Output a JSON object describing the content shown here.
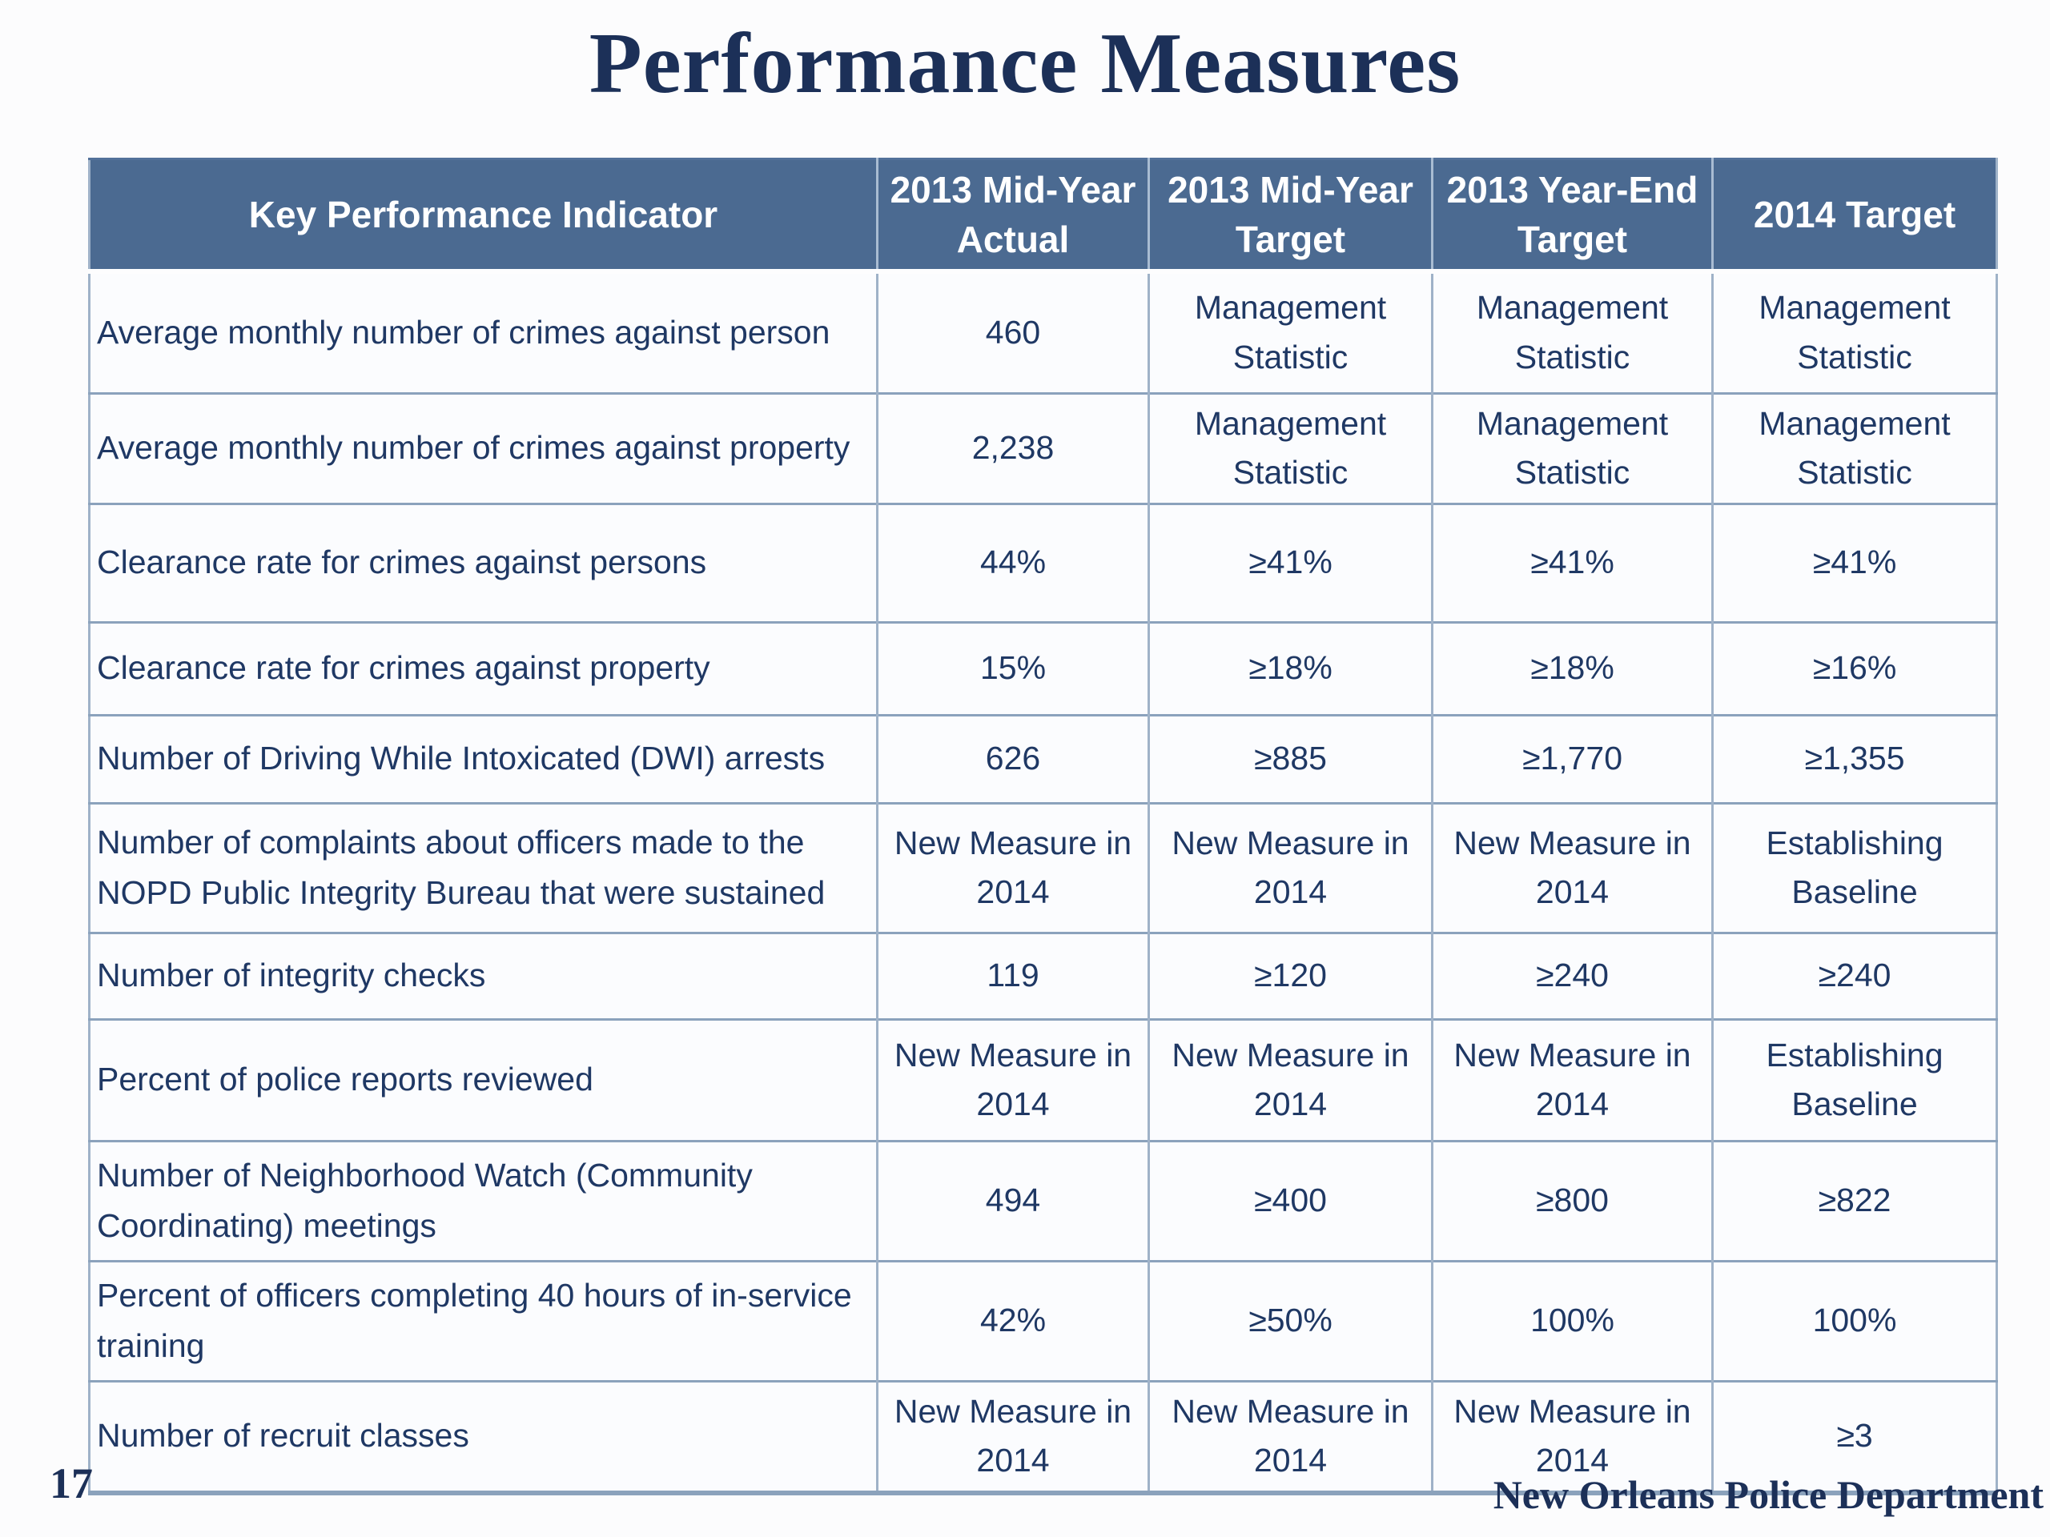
{
  "title": "Performance Measures",
  "page_number": "17",
  "footer": {
    "organization": "New Orleans Police Department"
  },
  "colors": {
    "header_bg": "#4b6a91",
    "header_text": "#ffffff",
    "body_text": "#1f3864",
    "title_text": "#1c3058",
    "grid_line": "#8ba2bc"
  },
  "table": {
    "headers": [
      "Key Performance Indicator",
      "2013 Mid-Year Actual",
      "2013 Mid-Year Target",
      "2013 Year-End Target",
      "2014 Target"
    ],
    "rows": [
      {
        "kpi": "Average monthly number of crimes against person",
        "actual": "460",
        "mid_year_target": "Management Statistic",
        "year_end_target": "Management Statistic",
        "target_2014": "Management Statistic"
      },
      {
        "kpi": "Average monthly number of crimes against property",
        "actual": "2,238",
        "mid_year_target": "Management Statistic",
        "year_end_target": "Management Statistic",
        "target_2014": "Management Statistic"
      },
      {
        "kpi": "Clearance rate for crimes against persons",
        "actual": "44%",
        "mid_year_target": "≥41%",
        "year_end_target": "≥41%",
        "target_2014": "≥41%"
      },
      {
        "kpi": "Clearance rate for crimes against property",
        "actual": "15%",
        "mid_year_target": "≥18%",
        "year_end_target": "≥18%",
        "target_2014": "≥16%"
      },
      {
        "kpi": "Number of Driving While Intoxicated (DWI) arrests",
        "actual": "626",
        "mid_year_target": "≥885",
        "year_end_target": "≥1,770",
        "target_2014": "≥1,355"
      },
      {
        "kpi": "Number of complaints about officers made to the NOPD Public Integrity Bureau that were sustained",
        "actual": "New Measure in 2014",
        "mid_year_target": "New Measure in 2014",
        "year_end_target": "New Measure in 2014",
        "target_2014": "Establishing Baseline"
      },
      {
        "kpi": "Number of integrity checks",
        "actual": "119",
        "mid_year_target": "≥120",
        "year_end_target": "≥240",
        "target_2014": "≥240"
      },
      {
        "kpi": "Percent of police reports reviewed",
        "actual": "New Measure in 2014",
        "mid_year_target": "New Measure in 2014",
        "year_end_target": "New Measure in 2014",
        "target_2014": "Establishing Baseline"
      },
      {
        "kpi": "Number of Neighborhood Watch (Community Coordinating) meetings",
        "actual": "494",
        "mid_year_target": "≥400",
        "year_end_target": "≥800",
        "target_2014": "≥822"
      },
      {
        "kpi": "Percent of officers completing 40 hours of in-service training",
        "actual": "42%",
        "mid_year_target": "≥50%",
        "year_end_target": "100%",
        "target_2014": "100%"
      },
      {
        "kpi": "Number of recruit classes",
        "actual": "New Measure in 2014",
        "mid_year_target": "New Measure in 2014",
        "year_end_target": "New Measure in 2014",
        "target_2014": "≥3"
      }
    ]
  }
}
